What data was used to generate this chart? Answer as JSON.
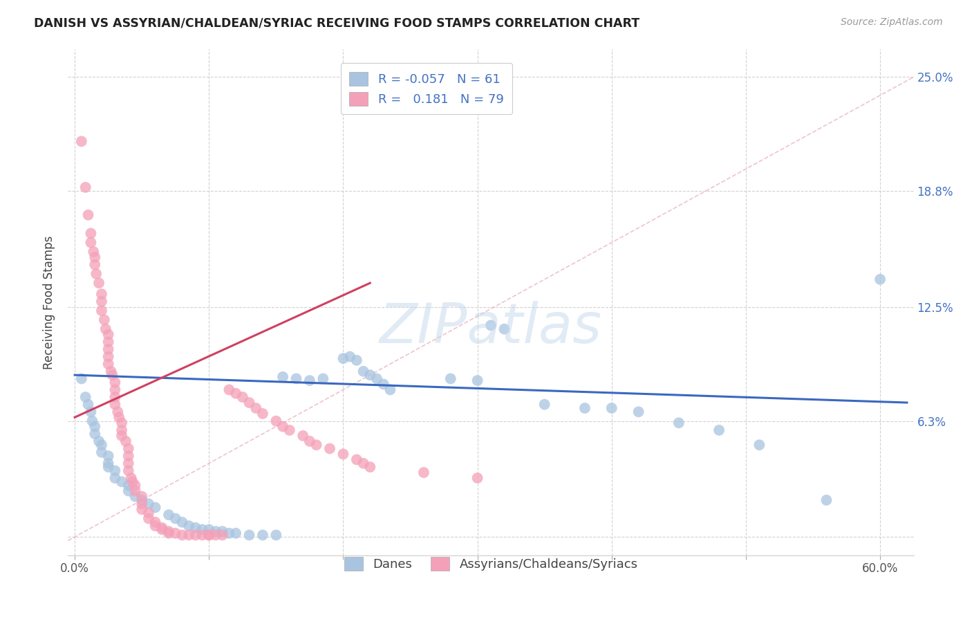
{
  "title": "DANISH VS ASSYRIAN/CHALDEAN/SYRIAC RECEIVING FOOD STAMPS CORRELATION CHART",
  "source": "Source: ZipAtlas.com",
  "ylabel": "Receiving Food Stamps",
  "xlim": [
    -0.005,
    0.625
  ],
  "ylim": [
    -0.01,
    0.265
  ],
  "ytick_vals": [
    0.0,
    0.063,
    0.125,
    0.188,
    0.25
  ],
  "ytick_labels": [
    "",
    "6.3%",
    "12.5%",
    "18.8%",
    "25.0%"
  ],
  "xtick_vals": [
    0.0,
    0.1,
    0.2,
    0.3,
    0.4,
    0.5,
    0.6
  ],
  "xtick_labels": [
    "0.0%",
    "",
    "",
    "",
    "",
    "",
    "60.0%"
  ],
  "danes_color": "#a8c4e0",
  "assyrian_color": "#f4a0b8",
  "danes_line_color": "#3a68c0",
  "assyrian_line_color": "#d04060",
  "danes_R": -0.057,
  "danes_N": 61,
  "assyrian_R": 0.181,
  "assyrian_N": 79,
  "legend_label_danes": "Danes",
  "legend_label_assyrian": "Assyrians/Chaldeans/Syriacs",
  "watermark": "ZIPatlas",
  "danes_x": [
    0.005,
    0.008,
    0.01,
    0.012,
    0.013,
    0.015,
    0.015,
    0.018,
    0.02,
    0.02,
    0.025,
    0.025,
    0.025,
    0.03,
    0.03,
    0.035,
    0.04,
    0.04,
    0.045,
    0.05,
    0.055,
    0.06,
    0.07,
    0.075,
    0.08,
    0.085,
    0.09,
    0.095,
    0.1,
    0.105,
    0.11,
    0.115,
    0.12,
    0.13,
    0.14,
    0.15,
    0.155,
    0.165,
    0.175,
    0.185,
    0.2,
    0.205,
    0.21,
    0.215,
    0.22,
    0.225,
    0.23,
    0.235,
    0.28,
    0.3,
    0.31,
    0.32,
    0.35,
    0.38,
    0.4,
    0.42,
    0.45,
    0.48,
    0.51,
    0.56,
    0.6
  ],
  "danes_y": [
    0.086,
    0.076,
    0.072,
    0.068,
    0.063,
    0.06,
    0.056,
    0.052,
    0.05,
    0.046,
    0.044,
    0.04,
    0.038,
    0.036,
    0.032,
    0.03,
    0.028,
    0.025,
    0.022,
    0.02,
    0.018,
    0.016,
    0.012,
    0.01,
    0.008,
    0.006,
    0.005,
    0.004,
    0.004,
    0.003,
    0.003,
    0.002,
    0.002,
    0.001,
    0.001,
    0.001,
    0.087,
    0.086,
    0.085,
    0.086,
    0.097,
    0.098,
    0.096,
    0.09,
    0.088,
    0.086,
    0.083,
    0.08,
    0.086,
    0.085,
    0.115,
    0.113,
    0.072,
    0.07,
    0.07,
    0.068,
    0.062,
    0.058,
    0.05,
    0.02,
    0.14
  ],
  "assyrian_x": [
    0.005,
    0.008,
    0.01,
    0.012,
    0.012,
    0.014,
    0.015,
    0.015,
    0.016,
    0.018,
    0.02,
    0.02,
    0.02,
    0.022,
    0.023,
    0.025,
    0.025,
    0.025,
    0.025,
    0.025,
    0.027,
    0.028,
    0.03,
    0.03,
    0.03,
    0.03,
    0.032,
    0.033,
    0.035,
    0.035,
    0.035,
    0.038,
    0.04,
    0.04,
    0.04,
    0.04,
    0.042,
    0.043,
    0.045,
    0.045,
    0.05,
    0.05,
    0.05,
    0.055,
    0.055,
    0.06,
    0.06,
    0.065,
    0.065,
    0.07,
    0.07,
    0.075,
    0.08,
    0.085,
    0.09,
    0.095,
    0.1,
    0.1,
    0.105,
    0.11,
    0.115,
    0.12,
    0.125,
    0.13,
    0.135,
    0.14,
    0.15,
    0.155,
    0.16,
    0.17,
    0.175,
    0.18,
    0.19,
    0.2,
    0.21,
    0.215,
    0.22,
    0.26,
    0.3
  ],
  "assyrian_y": [
    0.215,
    0.19,
    0.175,
    0.165,
    0.16,
    0.155,
    0.152,
    0.148,
    0.143,
    0.138,
    0.132,
    0.128,
    0.123,
    0.118,
    0.113,
    0.11,
    0.106,
    0.102,
    0.098,
    0.094,
    0.09,
    0.088,
    0.084,
    0.08,
    0.076,
    0.072,
    0.068,
    0.065,
    0.062,
    0.058,
    0.055,
    0.052,
    0.048,
    0.044,
    0.04,
    0.036,
    0.032,
    0.03,
    0.028,
    0.025,
    0.022,
    0.018,
    0.015,
    0.013,
    0.01,
    0.008,
    0.006,
    0.005,
    0.004,
    0.003,
    0.002,
    0.002,
    0.001,
    0.001,
    0.001,
    0.001,
    0.001,
    0.001,
    0.001,
    0.001,
    0.08,
    0.078,
    0.076,
    0.073,
    0.07,
    0.067,
    0.063,
    0.06,
    0.058,
    0.055,
    0.052,
    0.05,
    0.048,
    0.045,
    0.042,
    0.04,
    0.038,
    0.035,
    0.032
  ]
}
